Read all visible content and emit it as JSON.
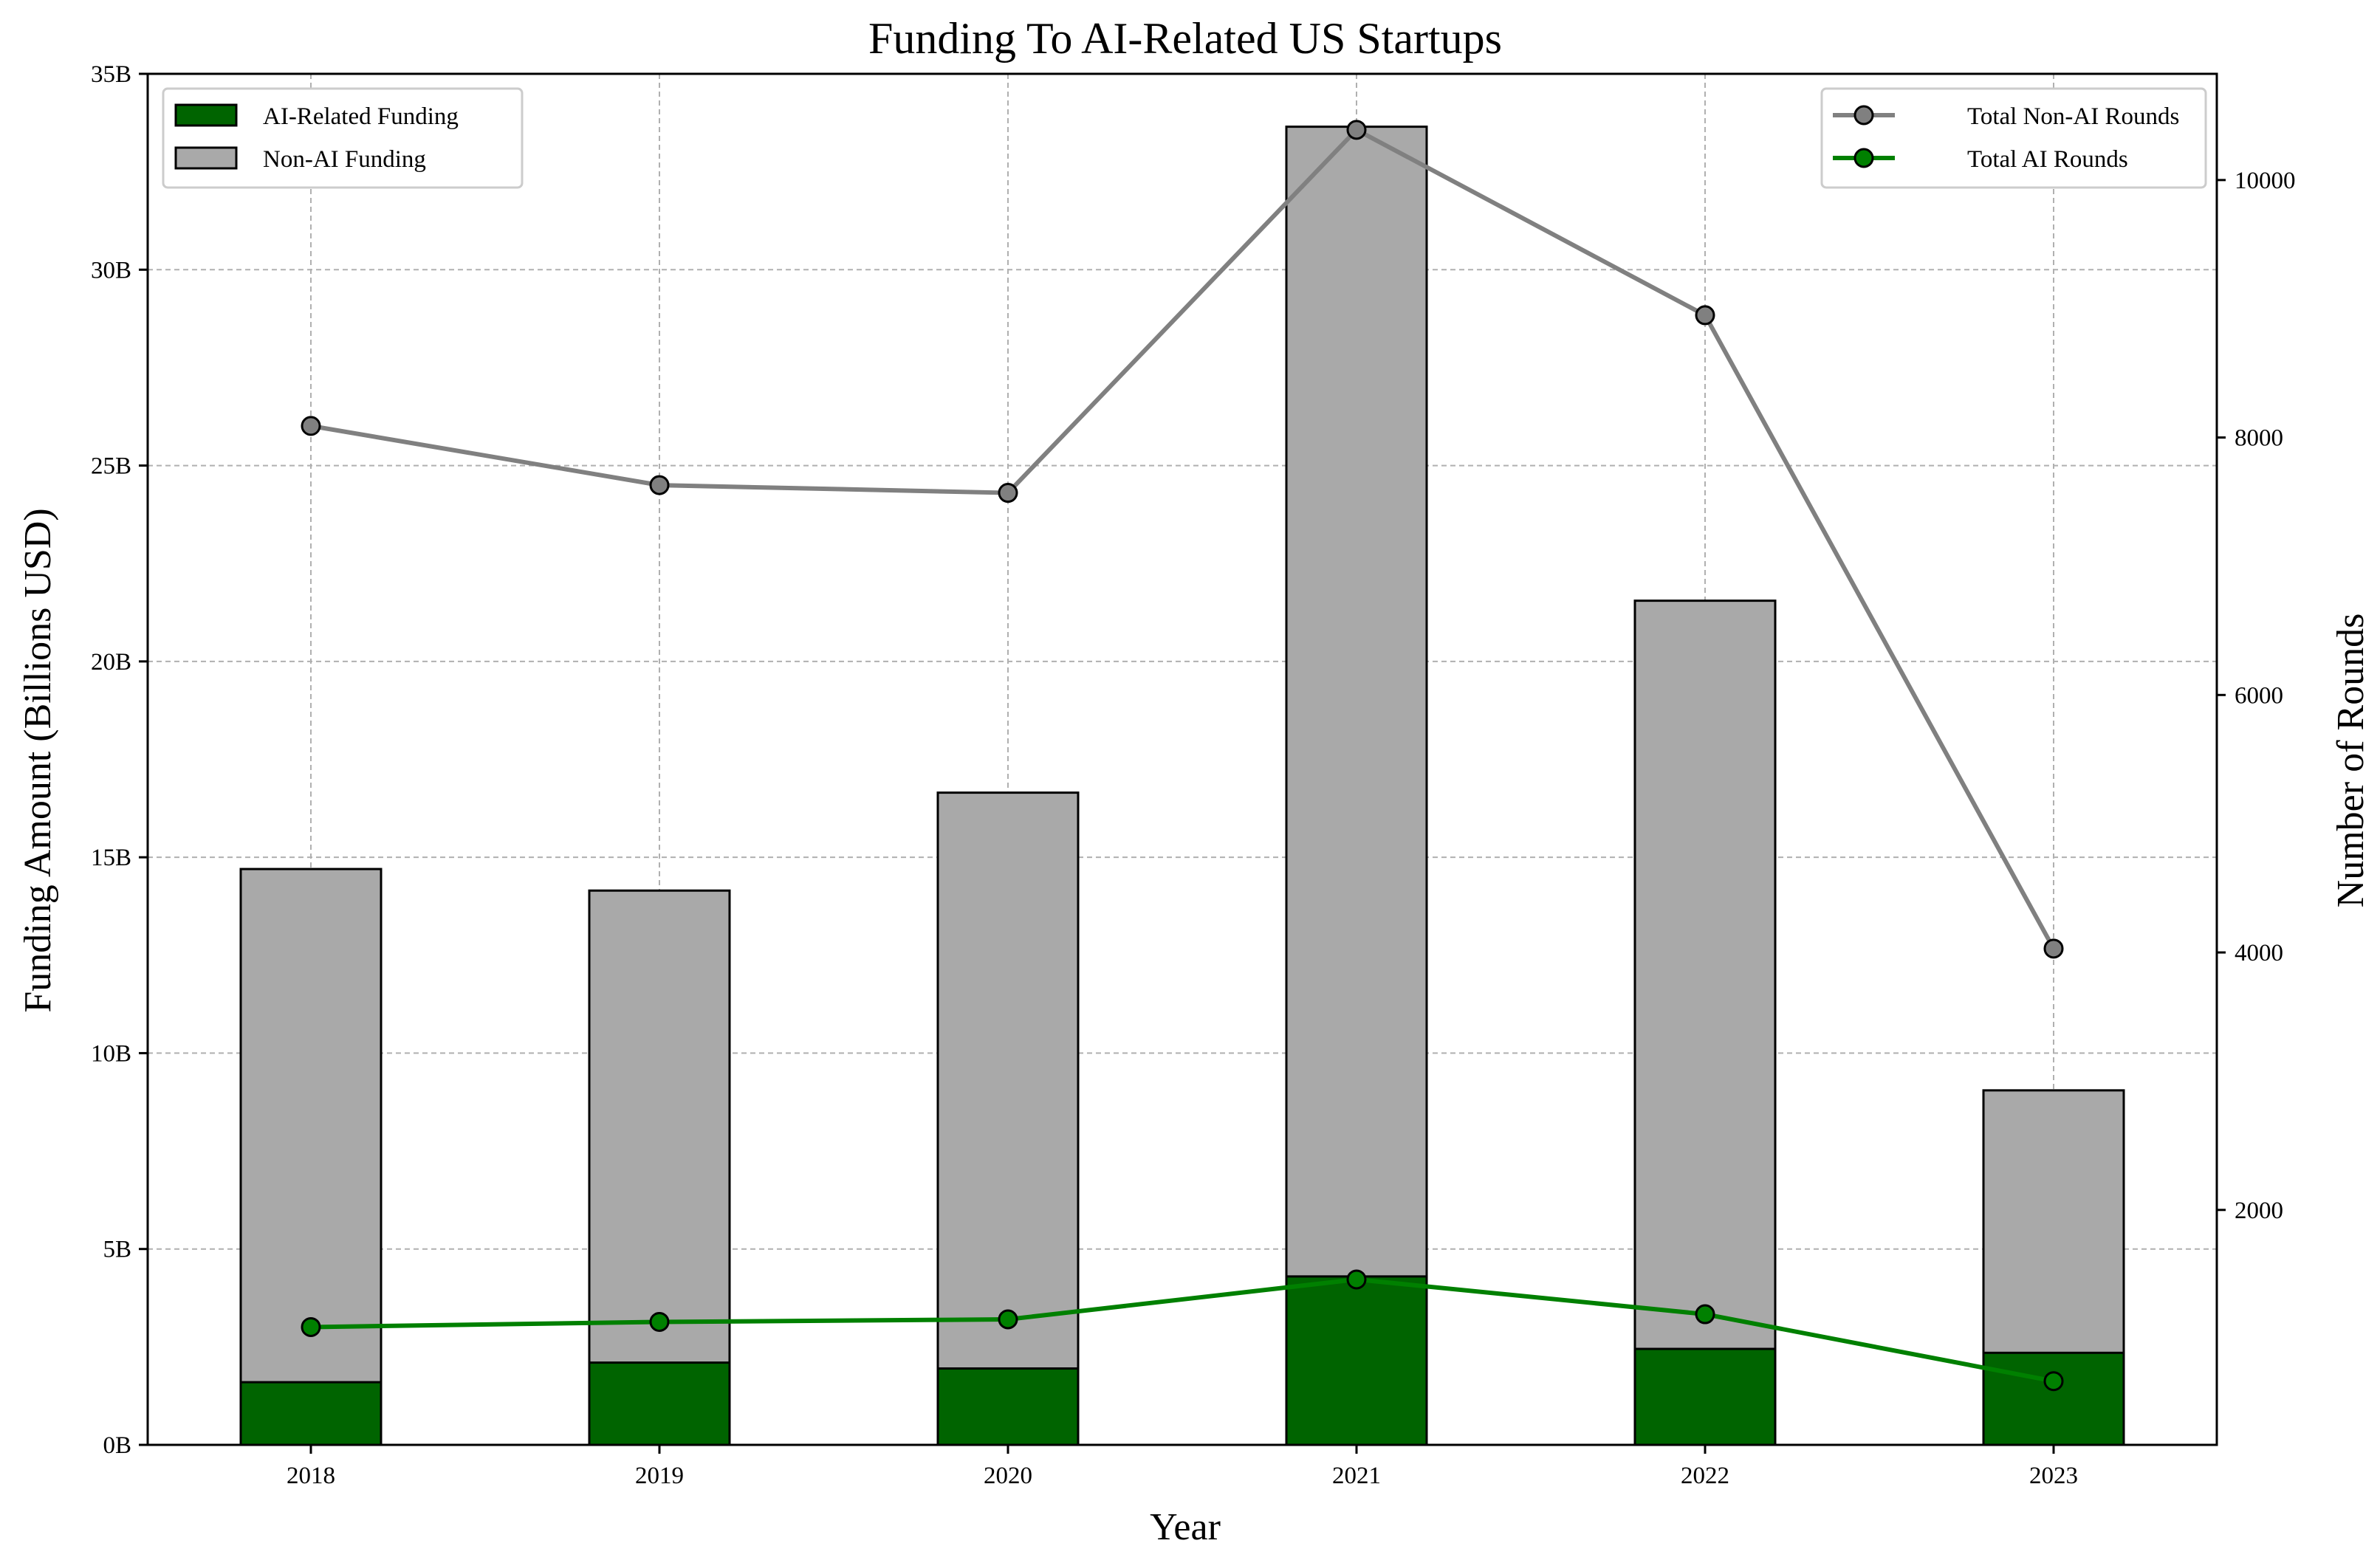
{
  "chart_data": {
    "type": "bar",
    "title": "Funding To AI-Related US Startups",
    "xlabel": "Year",
    "ylabel": "Funding Amount (Billions USD)",
    "y2label": "Number of Rounds",
    "categories": [
      "2018",
      "2019",
      "2020",
      "2021",
      "2022",
      "2023"
    ],
    "ylim": [
      0,
      35
    ],
    "y_ticks": [
      "0B",
      "5B",
      "10B",
      "15B",
      "20B",
      "25B",
      "30B",
      "35B"
    ],
    "y2lim": [
      175,
      10825
    ],
    "y2_ticks": [
      "2000",
      "4000",
      "6000",
      "8000",
      "10000"
    ],
    "grid": true,
    "bar_series": [
      {
        "name": "AI-Related Funding",
        "values": [
          1.6,
          2.1,
          1.95,
          4.3,
          2.45,
          2.35
        ],
        "color": "#006400"
      },
      {
        "name": "Non-AI Funding",
        "values": [
          14.7,
          14.15,
          16.65,
          33.65,
          21.55,
          9.05
        ],
        "color": "#a9a9a9"
      }
    ],
    "line_series": [
      {
        "name": "Total Non-AI Rounds",
        "values": [
          8090,
          7630,
          7570,
          10390,
          8950,
          4030
        ],
        "color": "#808080"
      },
      {
        "name": "Total AI Rounds",
        "values": [
          1090,
          1130,
          1150,
          1460,
          1190,
          670
        ],
        "color": "#008000"
      }
    ],
    "legend_bars_position": "top-left",
    "legend_lines_position": "top-right"
  }
}
